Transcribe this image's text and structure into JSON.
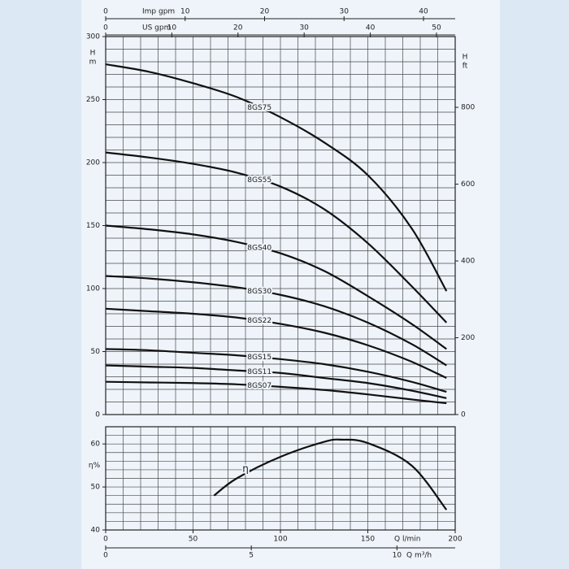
{
  "chart_data": [
    {
      "type": "line",
      "ylabel": [
        "H",
        "m"
      ],
      "y2label": [
        "H",
        "ft"
      ],
      "xlim": [
        0,
        200
      ],
      "ylim": [
        0,
        300
      ],
      "yticks": [
        0,
        50,
        100,
        150,
        200,
        250,
        300
      ],
      "y2lim": [
        0,
        984.25
      ],
      "y2ticks": [
        0,
        200,
        400,
        600,
        800
      ],
      "xgrid": [
        0,
        10,
        20,
        30,
        40,
        50,
        60,
        70,
        80,
        90,
        100,
        110,
        120,
        130,
        140,
        150,
        160,
        170,
        180,
        190,
        200
      ],
      "ygrid": [
        0,
        10,
        20,
        30,
        40,
        50,
        60,
        70,
        80,
        90,
        100,
        110,
        120,
        130,
        140,
        150,
        160,
        170,
        180,
        190,
        200,
        210,
        220,
        230,
        240,
        250,
        260,
        270,
        280,
        290,
        300
      ],
      "top_axes": [
        {
          "label": "Imp gpm",
          "xlim": [
            0,
            43.99
          ],
          "ticks": [
            0,
            10,
            20,
            30,
            40
          ]
        },
        {
          "label": "US gpm",
          "xlim": [
            0,
            52.83
          ],
          "ticks": [
            0,
            10,
            20,
            30,
            40,
            50
          ]
        }
      ],
      "color": "#111111",
      "x": [
        0,
        25,
        50,
        75,
        100,
        125,
        150,
        175,
        195
      ],
      "series": [
        {
          "name": "8GS75",
          "values": [
            278,
            272,
            263,
            252,
            236,
            216,
            190,
            148,
            98
          ]
        },
        {
          "name": "8GS55",
          "values": [
            208,
            204,
            199,
            192,
            181,
            163,
            136,
            102,
            73
          ]
        },
        {
          "name": "8GS40",
          "values": [
            150,
            147,
            143,
            137,
            128,
            114,
            94,
            72,
            52
          ]
        },
        {
          "name": "8GS30",
          "values": [
            110,
            108,
            105,
            101,
            95,
            86,
            73,
            56,
            39
          ]
        },
        {
          "name": "8GS22",
          "values": [
            84,
            82,
            80,
            77,
            72,
            65,
            55,
            42,
            29
          ]
        },
        {
          "name": "8GS15",
          "values": [
            52,
            51,
            49,
            47,
            44,
            40,
            34,
            26,
            18
          ]
        },
        {
          "name": "8GS11",
          "values": [
            39,
            38,
            37,
            35,
            33,
            29,
            25,
            19,
            13
          ]
        },
        {
          "name": "8GS07",
          "values": [
            26,
            25.5,
            25,
            24,
            22,
            19.5,
            16,
            12,
            9
          ]
        }
      ]
    },
    {
      "type": "line",
      "ylabel": "η%",
      "xlabel": "Q l/min",
      "xlim": [
        0,
        200
      ],
      "xticks": [
        0,
        50,
        100,
        150,
        200
      ],
      "ylim": [
        40,
        64
      ],
      "yticks": [
        40,
        50,
        60
      ],
      "xgrid": [
        0,
        10,
        20,
        30,
        40,
        50,
        60,
        70,
        80,
        90,
        100,
        110,
        120,
        130,
        140,
        150,
        160,
        170,
        180,
        190,
        200
      ],
      "ygrid": [
        40,
        42,
        44,
        46,
        48,
        50,
        52,
        54,
        56,
        58,
        60,
        62,
        64
      ],
      "bottom_axis": {
        "label": "Q m³/h",
        "xlim": [
          0,
          12
        ],
        "ticks": [
          0,
          5,
          10
        ]
      },
      "color": "#111111",
      "x": [
        62,
        75,
        100,
        125,
        135,
        150,
        175,
        195
      ],
      "series": [
        {
          "name": "η",
          "values": [
            48,
            52,
            57,
            60.5,
            61,
            60.2,
            55,
            44.7
          ]
        }
      ]
    }
  ]
}
